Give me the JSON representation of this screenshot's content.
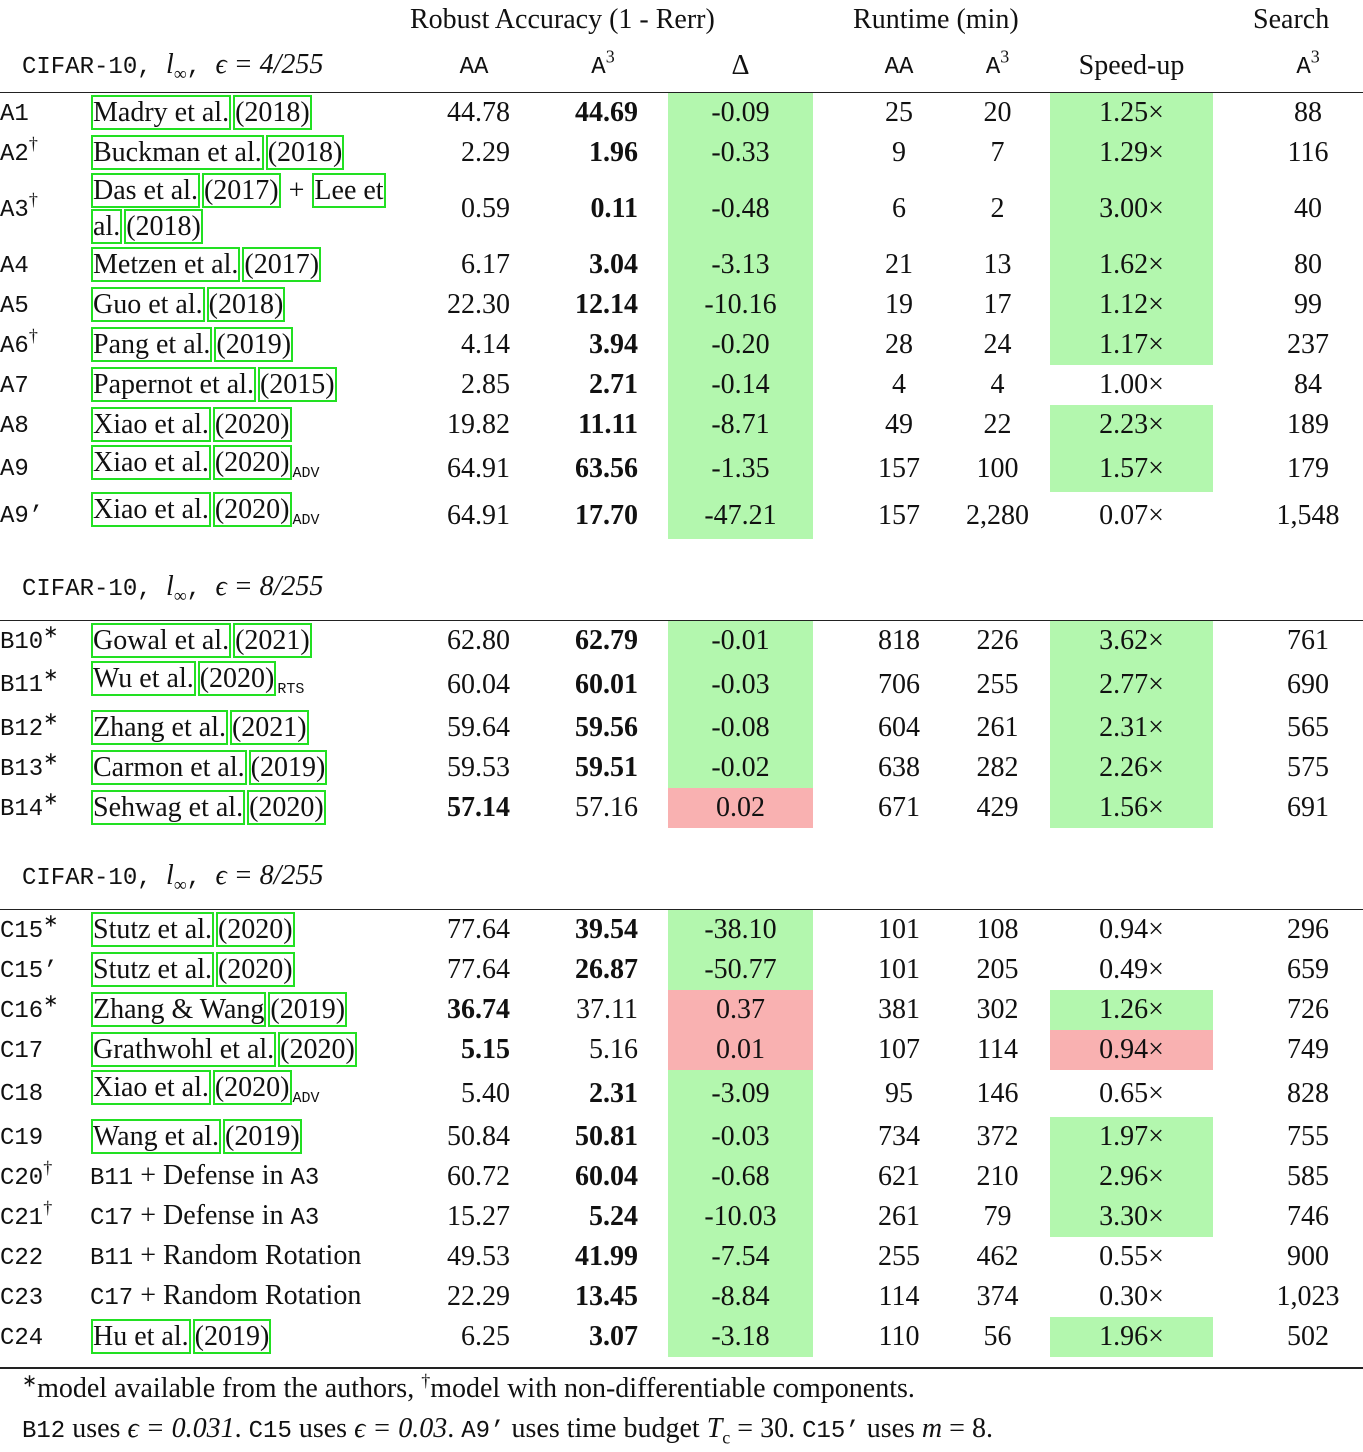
{
  "header": {
    "groups": [
      "Robust Accuracy (1 - Rerr)",
      "Runtime (min)",
      "Search"
    ],
    "columns": [
      [
        {
          "code": "AA"
        }
      ],
      [
        {
          "code": "A"
        },
        {
          "sup": "3"
        }
      ],
      [
        {
          "text": "Δ"
        }
      ],
      [
        {
          "code": "AA"
        }
      ],
      [
        {
          "code": "A"
        },
        {
          "sup": "3"
        }
      ],
      [
        {
          "text": "Speed-up"
        }
      ],
      [
        {
          "code": "A"
        },
        {
          "sup": "3"
        }
      ]
    ]
  },
  "sections": [
    {
      "title": [
        {
          "code": "CIFAR-10, "
        },
        {
          "math": "l"
        },
        {
          "sub": "∞"
        },
        {
          "code": ", "
        },
        {
          "math": "ϵ = 4/255"
        }
      ],
      "rows": [
        {
          "id": "A1",
          "ref": [
            {
              "cite": "Madry et al."
            },
            {
              "cite": "(2018)"
            }
          ],
          "cells": [
            "44.78",
            "44.69",
            "-0.09",
            "25",
            "20",
            "1.25×",
            "88"
          ],
          "bold": 1,
          "delta_bg": "green",
          "speedup_bg": "green"
        },
        {
          "id": "A2",
          "mark": "†",
          "ref": [
            {
              "cite": "Buckman et al."
            },
            {
              "cite": "(2018)"
            }
          ],
          "cells": [
            "2.29",
            "1.96",
            "-0.33",
            "9",
            "7",
            "1.29×",
            "116"
          ],
          "bold": 1,
          "delta_bg": "green",
          "speedup_bg": "green"
        },
        {
          "id": "A3",
          "mark": "†",
          "ref": [
            {
              "cite": "Das et al."
            },
            {
              "cite": "(2017)"
            },
            {
              "text": " + "
            },
            {
              "cite": "Lee et al."
            },
            {
              "cite": "(2018)"
            }
          ],
          "cells": [
            "0.59",
            "0.11",
            "-0.48",
            "6",
            "2",
            "3.00×",
            "40"
          ],
          "bold": 1,
          "delta_bg": "green",
          "speedup_bg": "green"
        },
        {
          "id": "A4",
          "ref": [
            {
              "cite": "Metzen et al."
            },
            {
              "cite": "(2017)"
            }
          ],
          "cells": [
            "6.17",
            "3.04",
            "-3.13",
            "21",
            "13",
            "1.62×",
            "80"
          ],
          "bold": 1,
          "delta_bg": "green",
          "speedup_bg": "green"
        },
        {
          "id": "A5",
          "ref": [
            {
              "cite": "Guo et al."
            },
            {
              "cite": "(2018)"
            }
          ],
          "cells": [
            "22.30",
            "12.14",
            "-10.16",
            "19",
            "17",
            "1.12×",
            "99"
          ],
          "bold": 1,
          "delta_bg": "green",
          "speedup_bg": "green"
        },
        {
          "id": "A6",
          "mark": "†",
          "ref": [
            {
              "cite": "Pang et al."
            },
            {
              "cite": "(2019)"
            }
          ],
          "cells": [
            "4.14",
            "3.94",
            "-0.20",
            "28",
            "24",
            "1.17×",
            "237"
          ],
          "bold": 1,
          "delta_bg": "green",
          "speedup_bg": "green"
        },
        {
          "id": "A7",
          "ref": [
            {
              "cite": "Papernot et al."
            },
            {
              "cite": "(2015)"
            }
          ],
          "cells": [
            "2.85",
            "2.71",
            "-0.14",
            "4",
            "4",
            "1.00×",
            "84"
          ],
          "bold": 1,
          "delta_bg": "green"
        },
        {
          "id": "A8",
          "ref": [
            {
              "cite": "Xiao et al."
            },
            {
              "cite": "(2020)"
            }
          ],
          "cells": [
            "19.82",
            "11.11",
            "-8.71",
            "49",
            "22",
            "2.23×",
            "189"
          ],
          "bold": 1,
          "delta_bg": "green",
          "speedup_bg": "green"
        },
        {
          "id": "A9",
          "ref": [
            {
              "cite": "Xiao et al."
            },
            {
              "cite": "(2020)"
            },
            {
              "subcode": "ADV"
            }
          ],
          "cells": [
            "64.91",
            "63.56",
            "-1.35",
            "157",
            "100",
            "1.57×",
            "179"
          ],
          "bold": 1,
          "delta_bg": "green",
          "speedup_bg": "green"
        },
        {
          "id": "A9’",
          "ref": [
            {
              "cite": "Xiao et al."
            },
            {
              "cite": "(2020)"
            },
            {
              "subcode": "ADV"
            }
          ],
          "cells": [
            "64.91",
            "17.70",
            "-47.21",
            "157",
            "2,280",
            "0.07×",
            "1,548"
          ],
          "bold": 1,
          "delta_bg": "green"
        }
      ]
    },
    {
      "title": [
        {
          "code": "CIFAR-10, "
        },
        {
          "math": "l"
        },
        {
          "sub": "∞"
        },
        {
          "code": ", "
        },
        {
          "math": "ϵ = 8/255"
        }
      ],
      "rows": [
        {
          "id": "B10",
          "mark": "∗",
          "ref": [
            {
              "cite": "Gowal et al."
            },
            {
              "cite": "(2021)"
            }
          ],
          "cells": [
            "62.80",
            "62.79",
            "-0.01",
            "818",
            "226",
            "3.62×",
            "761"
          ],
          "bold": 1,
          "delta_bg": "green",
          "speedup_bg": "green"
        },
        {
          "id": "B11",
          "mark": "∗",
          "ref": [
            {
              "cite": "Wu et al."
            },
            {
              "cite": "(2020)"
            },
            {
              "subcode": "RTS"
            }
          ],
          "cells": [
            "60.04",
            "60.01",
            "-0.03",
            "706",
            "255",
            "2.77×",
            "690"
          ],
          "bold": 1,
          "delta_bg": "green",
          "speedup_bg": "green"
        },
        {
          "id": "B12",
          "mark": "∗",
          "ref": [
            {
              "cite": "Zhang et al."
            },
            {
              "cite": "(2021)"
            }
          ],
          "cells": [
            "59.64",
            "59.56",
            "-0.08",
            "604",
            "261",
            "2.31×",
            "565"
          ],
          "bold": 1,
          "delta_bg": "green",
          "speedup_bg": "green"
        },
        {
          "id": "B13",
          "mark": "∗",
          "ref": [
            {
              "cite": "Carmon et al."
            },
            {
              "cite": "(2019)"
            }
          ],
          "cells": [
            "59.53",
            "59.51",
            "-0.02",
            "638",
            "282",
            "2.26×",
            "575"
          ],
          "bold": 1,
          "delta_bg": "green",
          "speedup_bg": "green"
        },
        {
          "id": "B14",
          "mark": "∗",
          "ref": [
            {
              "cite": "Sehwag et al."
            },
            {
              "cite": "(2020)"
            }
          ],
          "cells": [
            "57.14",
            "57.16",
            "0.02",
            "671",
            "429",
            "1.56×",
            "691"
          ],
          "bold": 0,
          "delta_bg": "red",
          "speedup_bg": "green"
        }
      ]
    },
    {
      "title": [
        {
          "code": "CIFAR-10, "
        },
        {
          "math": "l"
        },
        {
          "sub": "∞"
        },
        {
          "code": ", "
        },
        {
          "math": "ϵ = 8/255"
        }
      ],
      "rows": [
        {
          "id": "C15",
          "mark": "∗",
          "ref": [
            {
              "cite": "Stutz et al."
            },
            {
              "cite": "(2020)"
            }
          ],
          "cells": [
            "77.64",
            "39.54",
            "-38.10",
            "101",
            "108",
            "0.94×",
            "296"
          ],
          "bold": 1,
          "delta_bg": "green"
        },
        {
          "id": "C15’",
          "ref": [
            {
              "cite": "Stutz et al."
            },
            {
              "cite": "(2020)"
            }
          ],
          "cells": [
            "77.64",
            "26.87",
            "-50.77",
            "101",
            "205",
            "0.49×",
            "659"
          ],
          "bold": 1,
          "delta_bg": "green"
        },
        {
          "id": "C16",
          "mark": "∗",
          "ref": [
            {
              "cite": "Zhang & Wang"
            },
            {
              "cite": "(2019)"
            }
          ],
          "cells": [
            "36.74",
            "37.11",
            "0.37",
            "381",
            "302",
            "1.26×",
            "726"
          ],
          "bold": 0,
          "delta_bg": "red",
          "speedup_bg": "green"
        },
        {
          "id": "C17",
          "ref": [
            {
              "cite": "Grathwohl et al."
            },
            {
              "cite": "(2020)"
            }
          ],
          "cells": [
            "5.15",
            "5.16",
            "0.01",
            "107",
            "114",
            "0.94×",
            "749"
          ],
          "bold": 0,
          "delta_bg": "red",
          "speedup_bg": "red"
        },
        {
          "id": "C18",
          "ref": [
            {
              "cite": "Xiao et al."
            },
            {
              "cite": "(2020)"
            },
            {
              "subcode": "ADV"
            }
          ],
          "cells": [
            "5.40",
            "2.31",
            "-3.09",
            "95",
            "146",
            "0.65×",
            "828"
          ],
          "bold": 1,
          "delta_bg": "green"
        },
        {
          "id": "C19",
          "ref": [
            {
              "cite": "Wang et al."
            },
            {
              "cite": "(2019)"
            }
          ],
          "cells": [
            "50.84",
            "50.81",
            "-0.03",
            "734",
            "372",
            "1.97×",
            "755"
          ],
          "bold": 1,
          "delta_bg": "green",
          "speedup_bg": "green"
        },
        {
          "id": "C20",
          "mark": "†",
          "ref": [
            {
              "code": "B11"
            },
            {
              "text": " + Defense in "
            },
            {
              "code": "A3"
            }
          ],
          "cells": [
            "60.72",
            "60.04",
            "-0.68",
            "621",
            "210",
            "2.96×",
            "585"
          ],
          "bold": 1,
          "delta_bg": "green",
          "speedup_bg": "green"
        },
        {
          "id": "C21",
          "mark": "†",
          "ref": [
            {
              "code": "C17"
            },
            {
              "text": " + Defense in "
            },
            {
              "code": "A3"
            }
          ],
          "cells": [
            "15.27",
            "5.24",
            "-10.03",
            "261",
            "79",
            "3.30×",
            "746"
          ],
          "bold": 1,
          "delta_bg": "green",
          "speedup_bg": "green"
        },
        {
          "id": "C22",
          "ref": [
            {
              "code": "B11"
            },
            {
              "text": " + Random Rotation"
            }
          ],
          "cells": [
            "49.53",
            "41.99",
            "-7.54",
            "255",
            "462",
            "0.55×",
            "900"
          ],
          "bold": 1,
          "delta_bg": "green"
        },
        {
          "id": "C23",
          "ref": [
            {
              "code": "C17"
            },
            {
              "text": " + Random Rotation"
            }
          ],
          "cells": [
            "22.29",
            "13.45",
            "-8.84",
            "114",
            "374",
            "0.30×",
            "1,023"
          ],
          "bold": 1,
          "delta_bg": "green"
        },
        {
          "id": "C24",
          "ref": [
            {
              "cite": "Hu et al."
            },
            {
              "cite": "(2019)"
            }
          ],
          "cells": [
            "6.25",
            "3.07",
            "-3.18",
            "110",
            "56",
            "1.96×",
            "502"
          ],
          "bold": 1,
          "delta_bg": "green",
          "speedup_bg": "green"
        }
      ]
    }
  ],
  "footnotes": [
    [
      {
        "sup": "∗"
      },
      {
        "text": "model available from the authors, "
      },
      {
        "sup": "†"
      },
      {
        "text": "model with non-differentiable components."
      }
    ],
    [
      {
        "code": "B12"
      },
      {
        "text": " uses "
      },
      {
        "math": "ϵ = 0.031"
      },
      {
        "text": ". "
      },
      {
        "code": "C15"
      },
      {
        "text": " uses "
      },
      {
        "math": "ϵ = 0.03"
      },
      {
        "text": ". "
      },
      {
        "code": "A9’"
      },
      {
        "text": " uses time budget "
      },
      {
        "math": "T"
      },
      {
        "sub": "c"
      },
      {
        "text": " = 30. "
      },
      {
        "code": "C15’"
      },
      {
        "text": " uses "
      },
      {
        "math": "m"
      },
      {
        "text": " = 8."
      }
    ]
  ]
}
